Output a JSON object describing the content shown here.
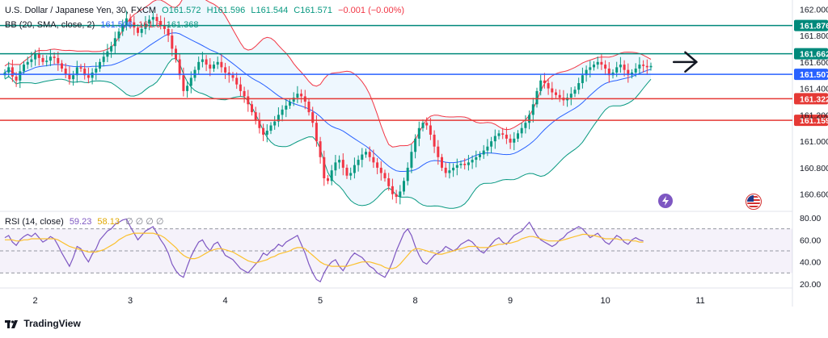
{
  "symbol_line": {
    "title": "U.S. Dollar / Japanese Yen, 30, FXCM",
    "o": "O161.572",
    "h": "H161.596",
    "l": "L161.544",
    "c": "C161.571",
    "chg": "−0.001 (−0.00%)"
  },
  "bb_line": {
    "label": "BB (20, SMA, close, 2)",
    "basis": "161.506",
    "upper": "161.6",
    "lower": "161.368"
  },
  "rsi_line": {
    "label": "RSI (14, close)",
    "rsi": "59.23",
    "ma": "58.13",
    "extra": "∅ ∅ ∅ ∅"
  },
  "footer": {
    "brand": "TradingView"
  },
  "colors": {
    "up": "#089981",
    "down": "#f23645",
    "bb_basis": "#2962ff",
    "bb_fill": "#e3f2fd",
    "rsi_line": "#7e57c2",
    "rsi_ma": "#fbc02d",
    "level_green": "#00897b",
    "level_blue": "#2962ff",
    "level_red": "#e53935"
  },
  "chart_data": [
    {
      "type": "candlestick",
      "title": "U.S. Dollar / Japanese Yen, 30, FXCM",
      "ylim": [
        160.47,
        162.02
      ],
      "y_ticks": [
        "162.000",
        "161.800",
        "161.600",
        "161.400",
        "161.200",
        "161.000",
        "160.800",
        "160.600"
      ],
      "y_tick_values": [
        162.0,
        161.8,
        161.6,
        161.4,
        161.2,
        161.0,
        160.8,
        160.6
      ],
      "x_ticks": [
        "2",
        "3",
        "4",
        "5",
        "8",
        "9",
        "10",
        "11"
      ],
      "x_tick_index": [
        8,
        33,
        58,
        83,
        108,
        133,
        158,
        183
      ],
      "levels": [
        {
          "value": 161.876,
          "label": "161.876",
          "color": "#00897b"
        },
        {
          "value": 161.662,
          "label": "161.662",
          "color": "#00897b"
        },
        {
          "value": 161.507,
          "label": "161.507",
          "color": "#2962ff"
        },
        {
          "value": 161.322,
          "label": "161.322",
          "color": "#e53935"
        },
        {
          "value": 161.159,
          "label": "161.159",
          "color": "#e53935"
        }
      ],
      "arrow_annotation": {
        "from_index": 176,
        "to_index": 182,
        "value": 161.6
      },
      "close": [
        161.52,
        161.56,
        161.49,
        161.46,
        161.53,
        161.58,
        161.6,
        161.62,
        161.66,
        161.63,
        161.6,
        161.61,
        161.64,
        161.63,
        161.59,
        161.55,
        161.51,
        161.47,
        161.5,
        161.56,
        161.55,
        161.5,
        161.48,
        161.52,
        161.55,
        161.6,
        161.64,
        161.68,
        161.72,
        161.78,
        161.83,
        161.88,
        161.93,
        161.9,
        161.86,
        161.82,
        161.85,
        161.89,
        161.92,
        161.94,
        161.91,
        161.88,
        161.85,
        161.8,
        161.7,
        161.62,
        161.5,
        161.38,
        161.42,
        161.48,
        161.54,
        161.6,
        161.62,
        161.58,
        161.55,
        161.58,
        161.6,
        161.56,
        161.52,
        161.5,
        161.48,
        161.43,
        161.38,
        161.34,
        161.28,
        161.22,
        161.16,
        161.1,
        161.05,
        161.08,
        161.12,
        161.15,
        161.2,
        161.24,
        161.27,
        161.3,
        161.33,
        161.36,
        161.34,
        161.3,
        161.22,
        161.14,
        161.0,
        160.88,
        160.72,
        160.7,
        160.78,
        160.84,
        160.86,
        160.8,
        160.74,
        160.76,
        160.82,
        160.86,
        160.9,
        160.92,
        160.88,
        160.84,
        160.8,
        160.76,
        160.72,
        160.66,
        160.6,
        160.58,
        160.62,
        160.7,
        160.8,
        160.92,
        161.02,
        161.1,
        161.14,
        161.12,
        161.05,
        160.96,
        160.88,
        160.8,
        160.76,
        160.78,
        160.8,
        160.82,
        160.83,
        160.82,
        160.84,
        160.86,
        160.88,
        160.9,
        160.93,
        160.96,
        161.0,
        161.04,
        161.06,
        161.05,
        161.02,
        160.99,
        161.02,
        161.06,
        161.1,
        161.14,
        161.2,
        161.28,
        161.38,
        161.46,
        161.44,
        161.4,
        161.37,
        161.35,
        161.33,
        161.31,
        161.33,
        161.36,
        161.39,
        161.44,
        161.5,
        161.54,
        161.56,
        161.58,
        161.6,
        161.58,
        161.55,
        161.5,
        161.52,
        161.56,
        161.58,
        161.54,
        161.5,
        161.52,
        161.55,
        161.58,
        161.57,
        161.56,
        161.57
      ],
      "rsi": {
        "ylim": [
          20,
          80
        ],
        "ticks": [
          "80.00",
          "60.00",
          "40.00",
          "20.00"
        ],
        "tick_values": [
          80,
          60,
          40,
          20
        ],
        "bands": [
          70,
          50,
          30
        ],
        "rsi_value": 59.23,
        "ma_value": 58.13,
        "values": [
          62,
          64,
          58,
          55,
          60,
          63,
          65,
          63,
          66,
          62,
          58,
          60,
          63,
          61,
          55,
          48,
          42,
          36,
          44,
          54,
          52,
          45,
          40,
          47,
          52,
          60,
          64,
          68,
          70,
          74,
          76,
          78,
          79,
          72,
          66,
          60,
          64,
          68,
          70,
          72,
          66,
          60,
          55,
          48,
          38,
          32,
          28,
          26,
          36,
          45,
          52,
          58,
          60,
          54,
          50,
          56,
          58,
          52,
          46,
          44,
          42,
          38,
          34,
          32,
          30,
          34,
          38,
          42,
          48,
          46,
          50,
          52,
          56,
          54,
          58,
          60,
          62,
          64,
          56,
          48,
          38,
          30,
          24,
          22,
          30,
          36,
          40,
          42,
          36,
          32,
          38,
          44,
          48,
          46,
          44,
          40,
          36,
          34,
          30,
          28,
          26,
          32,
          40,
          50,
          58,
          66,
          70,
          64,
          54,
          46,
          40,
          38,
          42,
          46,
          48,
          50,
          54,
          52,
          50,
          52,
          56,
          58,
          60,
          58,
          54,
          50,
          48,
          52,
          56,
          60,
          62,
          58,
          56,
          60,
          64,
          66,
          68,
          72,
          76,
          70,
          64,
          60,
          58,
          56,
          54,
          56,
          60,
          62,
          66,
          68,
          70,
          72,
          70,
          66,
          62,
          64,
          66,
          62,
          58,
          56,
          60,
          64,
          62,
          58,
          56,
          60,
          62,
          60,
          59
        ],
        "ma": [
          60,
          60,
          60,
          59,
          59,
          60,
          60,
          61,
          61,
          61,
          61,
          61,
          61,
          61,
          60,
          58,
          56,
          54,
          53,
          52,
          51,
          50,
          49,
          49,
          49,
          50,
          51,
          53,
          55,
          57,
          60,
          62,
          64,
          65,
          66,
          66,
          66,
          66,
          66,
          66,
          65,
          64,
          62,
          59,
          56,
          53,
          49,
          46,
          44,
          43,
          43,
          44,
          46,
          48,
          50,
          51,
          52,
          52,
          51,
          50,
          49,
          47,
          45,
          43,
          41,
          40,
          39,
          40,
          41,
          42,
          44,
          45,
          47,
          48,
          49,
          50,
          52,
          53,
          53,
          52,
          49,
          46,
          43,
          40,
          38,
          37,
          36,
          36,
          36,
          36,
          36,
          37,
          38,
          39,
          40,
          40,
          40,
          39,
          38,
          37,
          35,
          34,
          34,
          35,
          38,
          42,
          46,
          50,
          52,
          52,
          51,
          50,
          49,
          48,
          47,
          47,
          48,
          49,
          50,
          51,
          52,
          53,
          54,
          54,
          54,
          53,
          53,
          53,
          54,
          55,
          56,
          56,
          57,
          57,
          58,
          59,
          61,
          62,
          63,
          63,
          62,
          61,
          60,
          59,
          59,
          59,
          59,
          60,
          61,
          62,
          63,
          64,
          65,
          65,
          64,
          64,
          63,
          62,
          61,
          61,
          61,
          61,
          60,
          60,
          60,
          59,
          59,
          58,
          58
        ]
      }
    }
  ]
}
